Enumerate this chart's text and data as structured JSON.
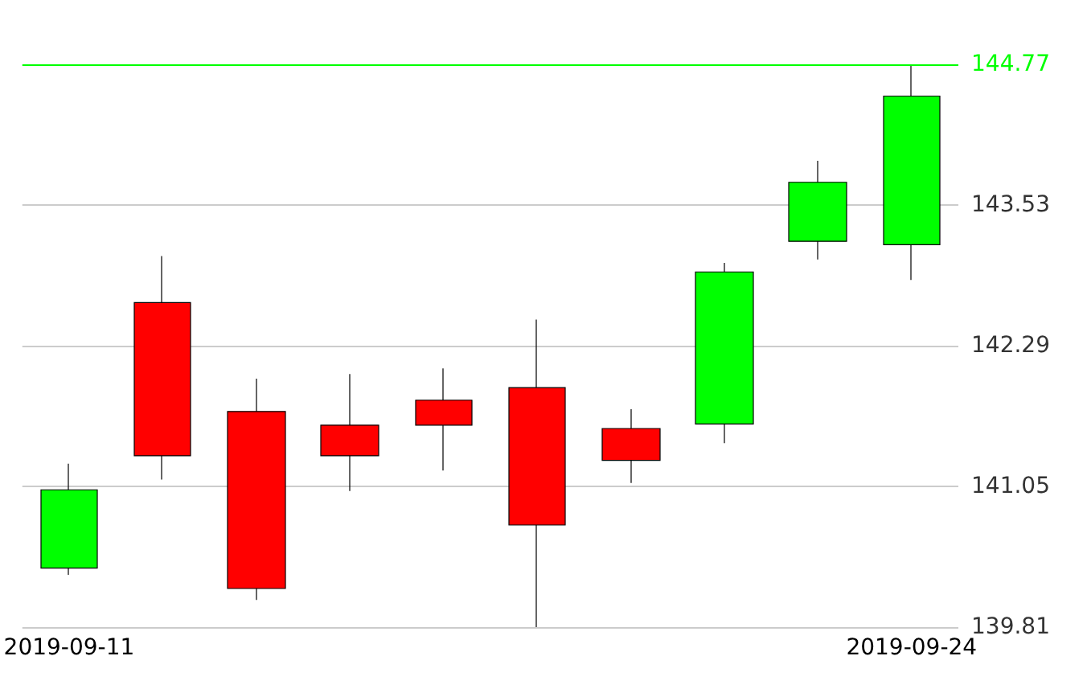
{
  "chart_data": {
    "type": "candlestick",
    "categories": [
      "2019-09-11",
      null,
      null,
      null,
      null,
      null,
      null,
      null,
      null,
      "2019-09-24"
    ],
    "ohlc": [
      [
        140.33,
        141.25,
        140.27,
        141.02
      ],
      [
        142.67,
        143.08,
        141.11,
        141.32
      ],
      [
        141.71,
        142.0,
        140.05,
        140.15
      ],
      [
        141.59,
        142.04,
        141.01,
        141.32
      ],
      [
        141.81,
        142.09,
        141.19,
        141.59
      ],
      [
        141.92,
        142.52,
        139.81,
        140.71
      ],
      [
        141.56,
        141.73,
        141.08,
        141.28
      ],
      [
        141.6,
        143.02,
        141.43,
        142.94
      ],
      [
        143.21,
        143.92,
        143.05,
        143.73
      ],
      [
        143.18,
        144.77,
        142.87,
        144.49
      ]
    ],
    "colors": [
      "#00ff00",
      "#ff0000",
      "#ff0000",
      "#ff0000",
      "#ff0000",
      "#ff0000",
      "#ff0000",
      "#00ff00",
      "#00ff00",
      "#00ff00"
    ],
    "ylim": [
      139.81,
      144.77
    ],
    "yticks": [
      139.81,
      141.05,
      142.29,
      143.53
    ],
    "grid": "y",
    "ref_lines": [
      {
        "axis": "y",
        "value": 144.77,
        "label": "144.77",
        "color": "#00ff00"
      }
    ]
  }
}
